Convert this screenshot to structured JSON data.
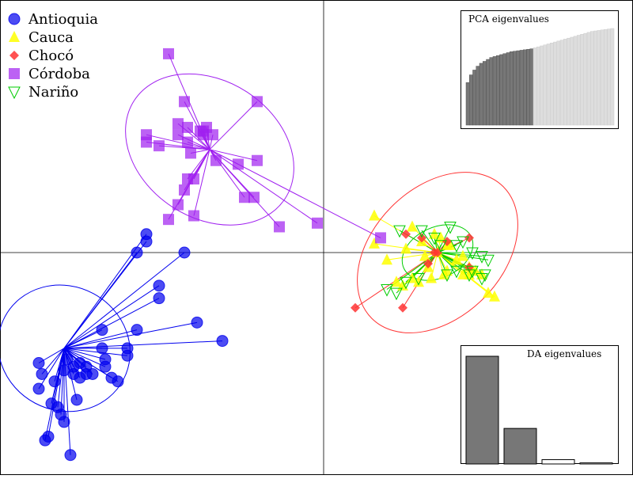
{
  "chart_data": [
    {
      "type": "scatter",
      "title": "",
      "xlabel": "",
      "ylabel": "",
      "xlim": [
        -5,
        5
      ],
      "ylim": [
        -3.0,
        3.2
      ],
      "axes": "crosshair at origin",
      "grid": false,
      "legend_position": "top-left",
      "series": [
        {
          "name": "Antioquia",
          "color": "#0000ee",
          "marker": "circle",
          "centroid": [
            -4.1,
            -1.3
          ],
          "ellipse": {
            "rx": 1.0,
            "ry": 0.93,
            "angle": -62
          },
          "points": [
            [
              -2.8,
              0.25
            ],
            [
              -2.8,
              0.15
            ],
            [
              -2.95,
              0.0
            ],
            [
              -2.2,
              0.0
            ],
            [
              -2.6,
              -0.45
            ],
            [
              -2.6,
              -0.62
            ],
            [
              -2.0,
              -0.95
            ],
            [
              -1.6,
              -1.2
            ],
            [
              -3.5,
              -1.05
            ],
            [
              -3.75,
              -1.55
            ],
            [
              -2.95,
              -1.05
            ],
            [
              -3.5,
              -1.3
            ],
            [
              -3.1,
              -1.3
            ],
            [
              -3.1,
              -1.4
            ],
            [
              -3.45,
              -1.45
            ],
            [
              -4.05,
              -1.45
            ],
            [
              -3.95,
              -1.55
            ],
            [
              -3.85,
              -1.5
            ],
            [
              -3.75,
              -1.65
            ],
            [
              -3.95,
              -1.65
            ],
            [
              -3.45,
              -1.55
            ],
            [
              -3.65,
              -1.65
            ],
            [
              -4.1,
              -1.6
            ],
            [
              -3.35,
              -1.7
            ],
            [
              -4.5,
              -1.5
            ],
            [
              -4.45,
              -1.65
            ],
            [
              -3.85,
              -1.7
            ],
            [
              -4.5,
              -1.85
            ],
            [
              -3.25,
              -1.75
            ],
            [
              -4.3,
              -2.05
            ],
            [
              -3.9,
              -2.0
            ],
            [
              -4.15,
              -2.2
            ],
            [
              -4.25,
              -1.75
            ],
            [
              -4.2,
              -2.1
            ],
            [
              -4.1,
              -2.3
            ],
            [
              -4.4,
              -2.55
            ],
            [
              -4.0,
              -2.75
            ],
            [
              -4.35,
              -2.5
            ]
          ]
        },
        {
          "name": "Cauca",
          "color": "#ffff00",
          "marker": "triangle",
          "centroid": [
            1.8,
            0.0
          ],
          "points": [
            [
              0.8,
              0.5
            ],
            [
              0.8,
              0.12
            ],
            [
              1.4,
              0.35
            ],
            [
              1.55,
              0.15
            ],
            [
              1.3,
              0.05
            ],
            [
              1.8,
              0.0
            ],
            [
              1.6,
              -0.05
            ],
            [
              1.75,
              0.25
            ],
            [
              2.0,
              0.1
            ],
            [
              2.1,
              -0.1
            ],
            [
              1.95,
              -0.25
            ],
            [
              2.3,
              -0.2
            ],
            [
              2.35,
              -0.25
            ],
            [
              2.2,
              -0.3
            ],
            [
              1.9,
              -0.3
            ],
            [
              1.7,
              -0.35
            ],
            [
              1.4,
              -0.35
            ],
            [
              1.5,
              -0.4
            ],
            [
              1.15,
              -0.4
            ],
            [
              1.0,
              -0.1
            ],
            [
              1.85,
              0.2
            ],
            [
              2.6,
              -0.55
            ],
            [
              2.4,
              -0.25
            ],
            [
              2.5,
              -0.3
            ],
            [
              2.3,
              -0.3
            ],
            [
              2.2,
              -0.05
            ],
            [
              1.65,
              -0.2
            ],
            [
              1.25,
              -0.45
            ],
            [
              2.7,
              -0.6
            ],
            [
              1.95,
              0.1
            ]
          ]
        },
        {
          "name": "Chocó",
          "color": "#ff3333",
          "marker": "diamond",
          "centroid": [
            1.8,
            0.0
          ],
          "ellipse": {
            "rx": 1.5,
            "ry": 0.9,
            "angle": -45
          },
          "points": [
            [
              1.3,
              0.25
            ],
            [
              1.55,
              0.2
            ],
            [
              1.75,
              0.0
            ],
            [
              1.8,
              0.0
            ],
            [
              2.3,
              0.2
            ],
            [
              1.95,
              0.15
            ],
            [
              1.65,
              -0.15
            ],
            [
              1.25,
              -0.75
            ],
            [
              0.5,
              -0.75
            ],
            [
              2.3,
              -0.2
            ]
          ]
        },
        {
          "name": "Córdoba",
          "color": "#a020f0",
          "marker": "square",
          "centroid": [
            -1.8,
            1.4
          ],
          "ellipse": {
            "rx": 1.45,
            "ry": 0.95,
            "angle": 33
          },
          "points": [
            [
              -2.45,
              2.7
            ],
            [
              -2.2,
              2.05
            ],
            [
              -1.05,
              2.05
            ],
            [
              -2.3,
              1.75
            ],
            [
              -2.15,
              1.7
            ],
            [
              -1.95,
              1.65
            ],
            [
              -1.9,
              1.65
            ],
            [
              -1.85,
              1.7
            ],
            [
              -1.9,
              1.6
            ],
            [
              -1.75,
              1.6
            ],
            [
              -2.8,
              1.6
            ],
            [
              -2.8,
              1.5
            ],
            [
              -2.6,
              1.45
            ],
            [
              -2.3,
              1.6
            ],
            [
              -2.15,
              1.5
            ],
            [
              -2.1,
              1.35
            ],
            [
              -1.7,
              1.25
            ],
            [
              -1.35,
              1.2
            ],
            [
              -1.05,
              1.25
            ],
            [
              -2.05,
              1.0
            ],
            [
              -2.15,
              1.0
            ],
            [
              -2.2,
              0.85
            ],
            [
              -1.25,
              0.75
            ],
            [
              -1.1,
              0.75
            ],
            [
              -2.3,
              0.65
            ],
            [
              -2.45,
              0.45
            ],
            [
              -2.05,
              0.5
            ],
            [
              -0.7,
              0.35
            ],
            [
              -0.1,
              0.4
            ],
            [
              0.9,
              0.2
            ]
          ]
        },
        {
          "name": "Nariño",
          "color": "#00cc00",
          "marker": "triangle-down",
          "centroid": [
            1.8,
            0.0
          ],
          "ellipse": {
            "rx": 0.6,
            "ry": 0.35,
            "angle": -25
          },
          "points": [
            [
              1.2,
              0.3
            ],
            [
              1.55,
              0.3
            ],
            [
              1.75,
              0.2
            ],
            [
              2.0,
              0.35
            ],
            [
              2.1,
              0.1
            ],
            [
              2.35,
              0.0
            ],
            [
              2.5,
              -0.05
            ],
            [
              2.6,
              -0.1
            ],
            [
              2.35,
              -0.25
            ],
            [
              2.55,
              -0.3
            ],
            [
              1.95,
              -0.3
            ],
            [
              1.5,
              -0.35
            ],
            [
              1.3,
              -0.4
            ],
            [
              1.0,
              -0.5
            ],
            [
              1.15,
              -0.55
            ],
            [
              2.1,
              -0.25
            ],
            [
              2.5,
              -0.35
            ],
            [
              2.2,
              0.15
            ],
            [
              2.3,
              -0.3
            ],
            [
              1.85,
              0.1
            ]
          ]
        }
      ]
    },
    {
      "type": "bar",
      "title": "PCA eigenvalues",
      "retained_bars": 20,
      "values": [
        44,
        52,
        57,
        61,
        64,
        66,
        68,
        70,
        71,
        72,
        73,
        74,
        75,
        76,
        76.5,
        77,
        77.5,
        78,
        78.5,
        79,
        80,
        81,
        82,
        83,
        84,
        85,
        86,
        87,
        88,
        89,
        90,
        91,
        92,
        93,
        94,
        95,
        96,
        97,
        97.5,
        98,
        98.5,
        99,
        99.5,
        100
      ],
      "colors": {
        "retained": "#777777",
        "other": "#dddddd"
      }
    },
    {
      "type": "bar",
      "title": "DA eigenvalues",
      "values": [
        100,
        33,
        4,
        1
      ],
      "colors": {
        "retained": "#777777",
        "other": "#ffffff"
      }
    }
  ]
}
